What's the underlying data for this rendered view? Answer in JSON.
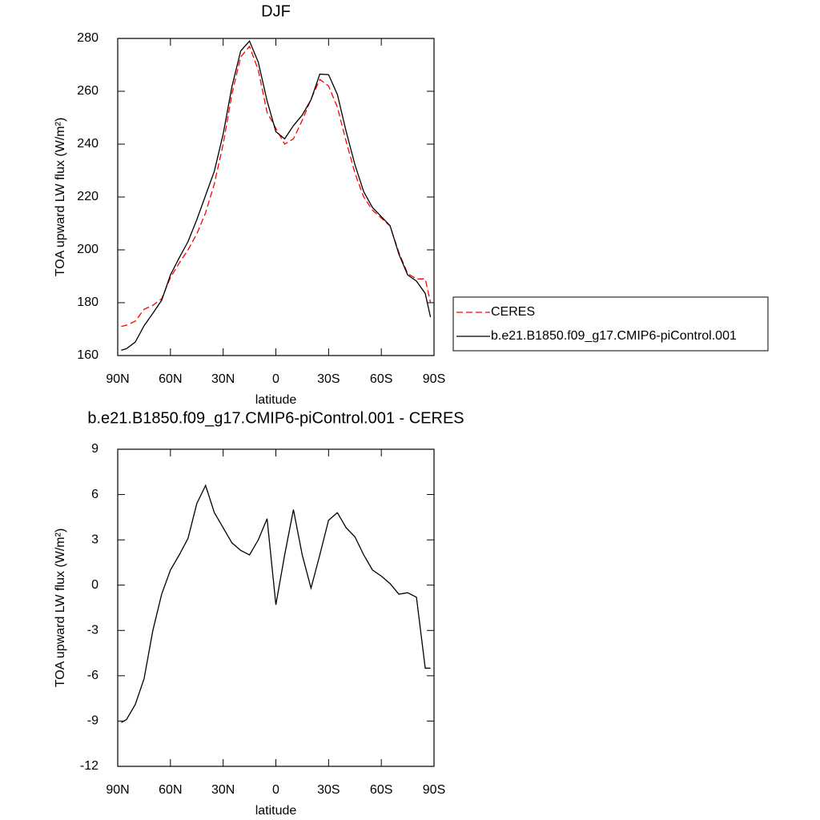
{
  "chart_data": [
    {
      "type": "line",
      "title": "DJF",
      "x_label": "latitude",
      "y_label": "TOA upward LW flux (W/m²)",
      "x": [
        88,
        85,
        80,
        75,
        70,
        65,
        60,
        55,
        50,
        45,
        40,
        35,
        30,
        25,
        20,
        15,
        10,
        5,
        0,
        -5,
        -10,
        -15,
        -20,
        -25,
        -30,
        -35,
        -40,
        -45,
        -50,
        -55,
        -60,
        -65,
        -70,
        -75,
        -80,
        -85,
        -88
      ],
      "xlim": [
        90,
        -90
      ],
      "xticks": [
        {
          "value": 90,
          "label": "90N"
        },
        {
          "value": 60,
          "label": "60N"
        },
        {
          "value": 30,
          "label": "30N"
        },
        0,
        {
          "value": -30,
          "label": "30S"
        },
        {
          "value": -60,
          "label": "60S"
        },
        {
          "value": -90,
          "label": "90S"
        }
      ],
      "ylim": [
        160,
        280
      ],
      "yticks": [
        160,
        180,
        200,
        220,
        240,
        260,
        280
      ],
      "legend": "right",
      "series": [
        {
          "name": "CERES",
          "color": "#ff0000",
          "dashed": true,
          "values": [
            171,
            171.5,
            173,
            177.5,
            179,
            181.5,
            189.5,
            195,
            200,
            206,
            214,
            225,
            240,
            259,
            273,
            277,
            268,
            252,
            246,
            240,
            242,
            249,
            257,
            264.5,
            262,
            254,
            241,
            229,
            220,
            215,
            212,
            209,
            199,
            191,
            189,
            189,
            180
          ]
        },
        {
          "name": "b.e21.B1850.f09_g17.CMIP6-piControl.001",
          "color": "#000000",
          "values": [
            162,
            162.6,
            165.1,
            171.3,
            176,
            180.9,
            190.5,
            197,
            203.1,
            211.4,
            220.6,
            229.8,
            243.8,
            261.8,
            275.3,
            279,
            271,
            256.4,
            244.7,
            242,
            247,
            251,
            256.8,
            266.5,
            266.3,
            258.8,
            244.8,
            232.2,
            222,
            216,
            212.6,
            209.1,
            198.4,
            190.5,
            188.2,
            183.5,
            174.5
          ]
        }
      ]
    },
    {
      "type": "line",
      "title": "b.e21.B1850.f09_g17.CMIP6-piControl.001 - CERES",
      "x_label": "latitude",
      "y_label": "TOA upward LW flux (W/m²)",
      "x": [
        88,
        85,
        80,
        75,
        70,
        65,
        60,
        55,
        50,
        45,
        40,
        35,
        30,
        25,
        20,
        15,
        10,
        5,
        0,
        -5,
        -10,
        -15,
        -20,
        -25,
        -30,
        -35,
        -40,
        -45,
        -50,
        -55,
        -60,
        -65,
        -70,
        -75,
        -80,
        -85,
        -88
      ],
      "xlim": [
        90,
        -90
      ],
      "xticks": [
        {
          "value": 90,
          "label": "90N"
        },
        {
          "value": 60,
          "label": "60N"
        },
        {
          "value": 30,
          "label": "30N"
        },
        0,
        {
          "value": -30,
          "label": "30S"
        },
        {
          "value": -60,
          "label": "60S"
        },
        {
          "value": -90,
          "label": "90S"
        }
      ],
      "ylim": [
        -12,
        9
      ],
      "yticks": [
        -12,
        -9,
        -6,
        -3,
        0,
        3,
        6,
        9
      ],
      "series": [
        {
          "color": "#000000",
          "values": [
            -9.1,
            -8.9,
            -7.9,
            -6.2,
            -3.0,
            -0.6,
            1.0,
            2.0,
            3.1,
            5.4,
            6.6,
            4.8,
            3.8,
            2.8,
            2.3,
            2.0,
            3.0,
            4.4,
            -1.3,
            2.0,
            5.0,
            2.0,
            -0.2,
            2.0,
            4.3,
            4.8,
            3.8,
            3.2,
            2.0,
            1.0,
            0.6,
            0.1,
            -0.6,
            -0.5,
            -0.8,
            -5.5,
            -5.5
          ]
        }
      ]
    }
  ]
}
